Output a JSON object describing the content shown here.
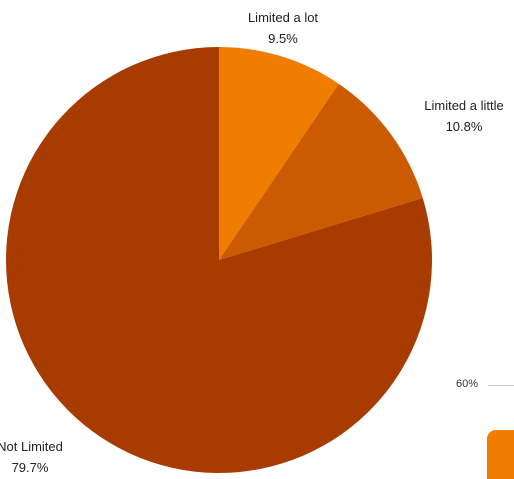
{
  "chart_data": {
    "type": "pie",
    "slices": [
      {
        "label": "Limited a lot",
        "value": 9.5,
        "display": "9.5%",
        "color": "#f07c00"
      },
      {
        "label": "Limited a little",
        "value": 10.8,
        "display": "10.8%",
        "color": "#cc5a00"
      },
      {
        "label": "Not Limited",
        "value": 79.7,
        "display": "79.7%",
        "color": "#a83c00"
      }
    ]
  },
  "adjacent_chart": {
    "tick_label": "60%",
    "bar_color": "#f07c00"
  }
}
